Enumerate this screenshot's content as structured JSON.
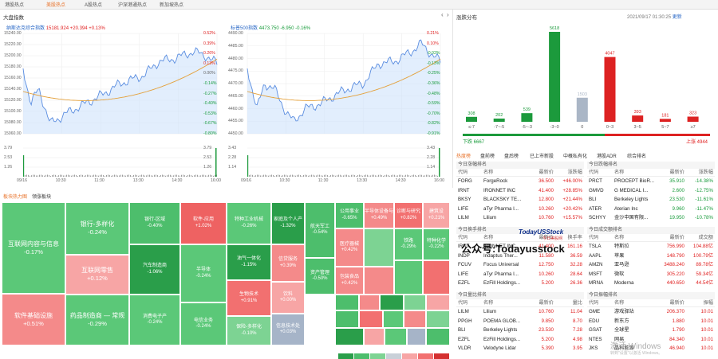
{
  "top_tabs": [
    {
      "label": "港股热点"
    },
    {
      "label": "美股热点",
      "active": true
    },
    {
      "label": "A股热点"
    },
    {
      "label": "沪深港通热点"
    },
    {
      "label": "新加坡热点"
    }
  ],
  "index_panel": {
    "title": "大盘指数",
    "nasdaq": {
      "name": "纳斯达克综合指数",
      "value": "15181.924",
      "change": "+20.394",
      "pct": "+0.13%",
      "y_left": [
        "15240.00",
        "15220.00",
        "15200.00",
        "15180.00",
        "15160.00",
        "15140.00",
        "15120.00",
        "15100.00",
        "15080.00",
        "15060.00"
      ],
      "y_right": [
        "0.52%",
        "0.39%",
        "0.26%",
        "0.13%",
        "0.00%",
        "-0.14%",
        "-0.27%",
        "-0.40%",
        "-0.53%",
        "-0.67%",
        "-0.80%"
      ],
      "vol_left": [
        "3.79",
        "2.53",
        "1.26"
      ],
      "vol_right": [
        "3.79",
        "2.53",
        "1.26"
      ],
      "x": [
        "09/16",
        "10:30",
        "11:30",
        "13:30",
        "14:30",
        "16:00"
      ],
      "close_level": "15161.5"
    },
    "sp500": {
      "name": "标普500指数",
      "value": "4473.750",
      "change": "-6.950",
      "pct": "-0.16%",
      "y_left": [
        "4490.00",
        "4485.00",
        "4480.00",
        "4475.00",
        "4470.00",
        "4465.00",
        "4460.00",
        "4455.00",
        "4450.00"
      ],
      "y_right": [
        "0.21%",
        "0.10%",
        "-0.02%",
        "-0.13%",
        "-0.25%",
        "-0.36%",
        "-0.48%",
        "-0.59%",
        "-0.70%",
        "-0.82%",
        "-0.91%"
      ],
      "vol_left": [
        "3.43",
        "2.28",
        "1.14"
      ],
      "vol_right": [
        "3.43",
        "2.28",
        "1.14"
      ],
      "x": [
        "09/16",
        "10:30",
        "11:30",
        "13:30",
        "14:30",
        "16:00"
      ],
      "close_level": "4480.7"
    }
  },
  "distribution": {
    "title": "涨跌分布",
    "datetime": "2021/09/17 01:30:25",
    "update_label": "更新",
    "bars": [
      {
        "label": "≤-7",
        "value": 308
      },
      {
        "label": "-7~-5",
        "value": 202
      },
      {
        "label": "-5~-3",
        "value": 539
      },
      {
        "label": "-3~0",
        "value": 5618
      },
      {
        "label": "0",
        "value": 1503
      },
      {
        "label": "0~3",
        "value": 4047
      },
      {
        "label": "3~5",
        "value": 393
      },
      {
        "label": "5~7",
        "value": 181
      },
      {
        "label": "≥7",
        "value": 323
      }
    ],
    "down_label": "下跌 6667",
    "up_label": "上涨 4944"
  },
  "sector_panel": {
    "tabs": [
      {
        "label": "板块热力图",
        "active": true
      },
      {
        "label": "领涨板块"
      }
    ],
    "tiles": [
      {
        "name": "互联网内容与信息",
        "pct": "-0.17%",
        "color": "#5bc878"
      },
      {
        "name": "软件基础设施",
        "pct": "+0.51%",
        "color": "#f48a8a"
      },
      {
        "name": "银行-多样化",
        "pct": "-0.24%",
        "color": "#5bc878"
      },
      {
        "name": "互联网零售",
        "pct": "+0.12%",
        "color": "#f7a5a5"
      },
      {
        "name": "药品制造商 — 常规",
        "pct": "-0.29%",
        "color": "#5bc878"
      },
      {
        "name": "银行-区域",
        "pct": "-0.40%",
        "color": "#4dbe6c"
      },
      {
        "name": "汽车制造商",
        "pct": "-1.06%",
        "color": "#2a9e4a"
      },
      {
        "name": "消费电子产",
        "pct": "-0.24%",
        "color": "#5bc878"
      },
      {
        "name": "软件-应用",
        "pct": "+1.02%",
        "color": "#ee6262"
      },
      {
        "name": "半导体",
        "pct": "-0.24%",
        "color": "#5bc878"
      },
      {
        "name": "电信业务",
        "pct": "-0.24%",
        "color": "#5bc878"
      },
      {
        "name": "特种工业机械",
        "pct": "-0.26%",
        "color": "#5bc878"
      },
      {
        "name": "油气一体化",
        "pct": "-1.15%",
        "color": "#2a9e4a"
      },
      {
        "name": "生物技术",
        "pct": "+0.91%",
        "color": "#f27070"
      },
      {
        "name": "保险-多样化",
        "pct": "-0.10%",
        "color": "#7dd393"
      },
      {
        "name": "家庭及个人产",
        "pct": "-1.32%",
        "color": "#2a9e4a"
      },
      {
        "name": "信贷服务",
        "pct": "+0.39%",
        "color": "#f48a8a"
      },
      {
        "name": "饮料",
        "pct": "+0.00%",
        "color": "#f7a5a5"
      },
      {
        "name": "信息技术处",
        "pct": "+0.03%",
        "color": "#a6b4c8"
      },
      {
        "name": "航天军工",
        "pct": "-0.54%",
        "color": "#4dbe6c"
      },
      {
        "name": "资产管理",
        "pct": "-0.50%",
        "color": "#4dbe6c"
      },
      {
        "name": "医疗器械",
        "pct": "+0.42%",
        "color": "#f48a8a"
      },
      {
        "name": "包装食品",
        "pct": "+0.42%",
        "color": "#f48a8a"
      },
      {
        "name": "公用事业",
        "pct": "-0.65%",
        "color": "#4dbe6c"
      },
      {
        "name": "半导体设备与",
        "pct": "+0.49%",
        "color": "#f48a8a"
      },
      {
        "name": "诊断与研究",
        "pct": "+0.82%",
        "color": "#f27070"
      },
      {
        "name": "建筑设",
        "pct": "+0.21%",
        "color": "#f7a5a5"
      },
      {
        "name": "铁路",
        "pct": "-0.29%",
        "color": "#5bc878"
      },
      {
        "name": "特种化学",
        "pct": "-0.22%",
        "color": "#5bc878"
      }
    ]
  },
  "movers": {
    "tabs": [
      {
        "label": "热度榜",
        "active": true
      },
      {
        "label": "盘前榜"
      },
      {
        "label": "盘后榜"
      },
      {
        "label": "已上市新股"
      },
      {
        "label": "中概私有化"
      },
      {
        "label": "港股ADR"
      },
      {
        "label": "综合排名"
      }
    ],
    "columns": {
      "code": "代码",
      "name": "名称",
      "price": "最新价",
      "change": "涨跌幅",
      "turnover": "成交额"
    },
    "tables": [
      {
        "title": "今日涨幅排名",
        "col4": "涨跌幅",
        "rows": [
          {
            "code": "FORG",
            "name": "ForgeRock",
            "price": "36.500",
            "chg": "+46.00%"
          },
          {
            "code": "IRNT",
            "name": "IRONNET INC",
            "price": "41.400",
            "chg": "+28.85%"
          },
          {
            "code": "BKSY",
            "name": "BLACKSKY TE...",
            "price": "12.800",
            "chg": "+21.44%"
          },
          {
            "code": "LIFE",
            "name": "aTyr Pharma I...",
            "price": "10.260",
            "chg": "+20.42%"
          },
          {
            "code": "LILM",
            "name": "Lilium",
            "price": "10.760",
            "chg": "+15.57%"
          }
        ]
      },
      {
        "title": "今日跌幅排名",
        "col4": "涨跌幅",
        "rows": [
          {
            "code": "PRCT",
            "name": "PROCEPT BioR...",
            "price": "35.910",
            "chg": "-14.38%"
          },
          {
            "code": "GMVD",
            "name": "G MEDICAL I...",
            "price": "2.600",
            "chg": "-12.75%"
          },
          {
            "code": "BLI",
            "name": "Berkeley Lights",
            "price": "23.530",
            "chg": "-11.61%"
          },
          {
            "code": "ATER",
            "name": "Aterian Inc",
            "price": "9.960",
            "chg": "-11.47%"
          },
          {
            "code": "SCHYY",
            "name": "金沙中国有限...",
            "price": "19.950",
            "chg": "-10.78%"
          }
        ]
      },
      {
        "title": "今日换手排名",
        "col4": "换手率",
        "rows": [
          {
            "code": "IRNT",
            "name": "IRONNET INC",
            "price": "41.400",
            "chg": "161.16"
          },
          {
            "code": "INDP",
            "name": "Indaptus Ther...",
            "price": "11.580",
            "chg": "36.59"
          },
          {
            "code": "FCUV",
            "name": "Focus Universal",
            "price": "12.750",
            "chg": "32.28"
          },
          {
            "code": "LIFE",
            "name": "aTyr Pharma I...",
            "price": "10.260",
            "chg": "28.64"
          },
          {
            "code": "EZFL",
            "name": "EzFill Holdings...",
            "price": "5.200",
            "chg": "26.36"
          }
        ]
      },
      {
        "title": "今日成交额排名",
        "col4": "成交额",
        "rows": [
          {
            "code": "TSLA",
            "name": "特斯拉",
            "price": "756.990",
            "chg": "104.88亿"
          },
          {
            "code": "AAPL",
            "name": "苹果",
            "price": "148.790",
            "chg": "100.79亿"
          },
          {
            "code": "AMZN",
            "name": "亚马逊",
            "price": "3488.240",
            "chg": "89.78亿"
          },
          {
            "code": "MSFT",
            "name": "微软",
            "price": "305.220",
            "chg": "59.34亿"
          },
          {
            "code": "MRNA",
            "name": "Moderna",
            "price": "440.650",
            "chg": "44.54亿"
          }
        ]
      },
      {
        "title": "今日量比排名",
        "col4": "量比",
        "rows": [
          {
            "code": "LILM",
            "name": "Lilium",
            "price": "10.760",
            "chg": "11.04"
          },
          {
            "code": "PPGH",
            "name": "POEMA GLOB...",
            "price": "9.850",
            "chg": "8.70"
          },
          {
            "code": "BLI",
            "name": "Berkeley Lights",
            "price": "23.530",
            "chg": "7.28"
          },
          {
            "code": "EZFL",
            "name": "EzFill Holdings...",
            "price": "5.200",
            "chg": "4.98"
          },
          {
            "code": "VLDR",
            "name": "Velodyne Lidar",
            "price": "5.390",
            "chg": "3.95"
          }
        ]
      },
      {
        "title": "今日振幅排名",
        "col4": "振幅",
        "rows": [
          {
            "code": "GME",
            "name": "游戏驿站",
            "price": "206.370",
            "chg": "10.01"
          },
          {
            "code": "EDU",
            "name": "新东方",
            "price": "1.880",
            "chg": "10.01"
          },
          {
            "code": "GSAT",
            "name": "全球星",
            "price": "1.790",
            "chg": "10.01"
          },
          {
            "code": "NTES",
            "name": "网易",
            "price": "84.340",
            "chg": "10.01"
          },
          {
            "code": "JKS",
            "name": "晶科能源",
            "price": "46.940",
            "chg": "10.01"
          }
        ]
      }
    ]
  },
  "watermark": {
    "brand": "TodayUSStock",
    "sub": "今日美股网",
    "main": "公众号:Todayusstock"
  },
  "os_notice": {
    "line1": "激活 Windows",
    "line2": "转到\"设置\"以激活 Windows。"
  }
}
